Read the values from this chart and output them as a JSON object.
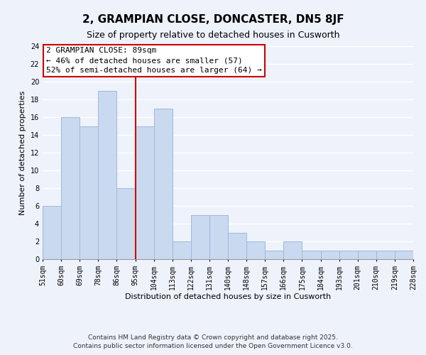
{
  "title": "2, GRAMPIAN CLOSE, DONCASTER, DN5 8JF",
  "subtitle": "Size of property relative to detached houses in Cusworth",
  "xlabel": "Distribution of detached houses by size in Cusworth",
  "ylabel": "Number of detached properties",
  "bar_labels": [
    "51sqm",
    "60sqm",
    "69sqm",
    "78sqm",
    "86sqm",
    "95sqm",
    "104sqm",
    "113sqm",
    "122sqm",
    "131sqm",
    "140sqm",
    "148sqm",
    "157sqm",
    "166sqm",
    "175sqm",
    "184sqm",
    "193sqm",
    "201sqm",
    "210sqm",
    "219sqm",
    "228sqm"
  ],
  "bar_values": [
    6,
    16,
    15,
    19,
    8,
    15,
    17,
    2,
    5,
    5,
    3,
    2,
    1,
    2,
    1,
    1,
    1,
    1,
    1,
    1
  ],
  "bar_color": "#c9d9f0",
  "bar_edge_color": "#a0b8d8",
  "vline_x": 5,
  "vline_color": "#cc0000",
  "ylim": [
    0,
    24
  ],
  "yticks": [
    0,
    2,
    4,
    6,
    8,
    10,
    12,
    14,
    16,
    18,
    20,
    22,
    24
  ],
  "annotation_title": "2 GRAMPIAN CLOSE: 89sqm",
  "annotation_line1": "← 46% of detached houses are smaller (57)",
  "annotation_line2": "52% of semi-detached houses are larger (64) →",
  "annotation_box_color": "#ffffff",
  "annotation_box_edge": "#cc0000",
  "footer1": "Contains HM Land Registry data © Crown copyright and database right 2025.",
  "footer2": "Contains public sector information licensed under the Open Government Licence v3.0.",
  "background_color": "#eef2fb",
  "grid_color": "#ffffff",
  "title_fontsize": 11,
  "subtitle_fontsize": 9,
  "axis_label_fontsize": 8,
  "tick_fontsize": 7,
  "annotation_fontsize": 8,
  "footer_fontsize": 6.5
}
